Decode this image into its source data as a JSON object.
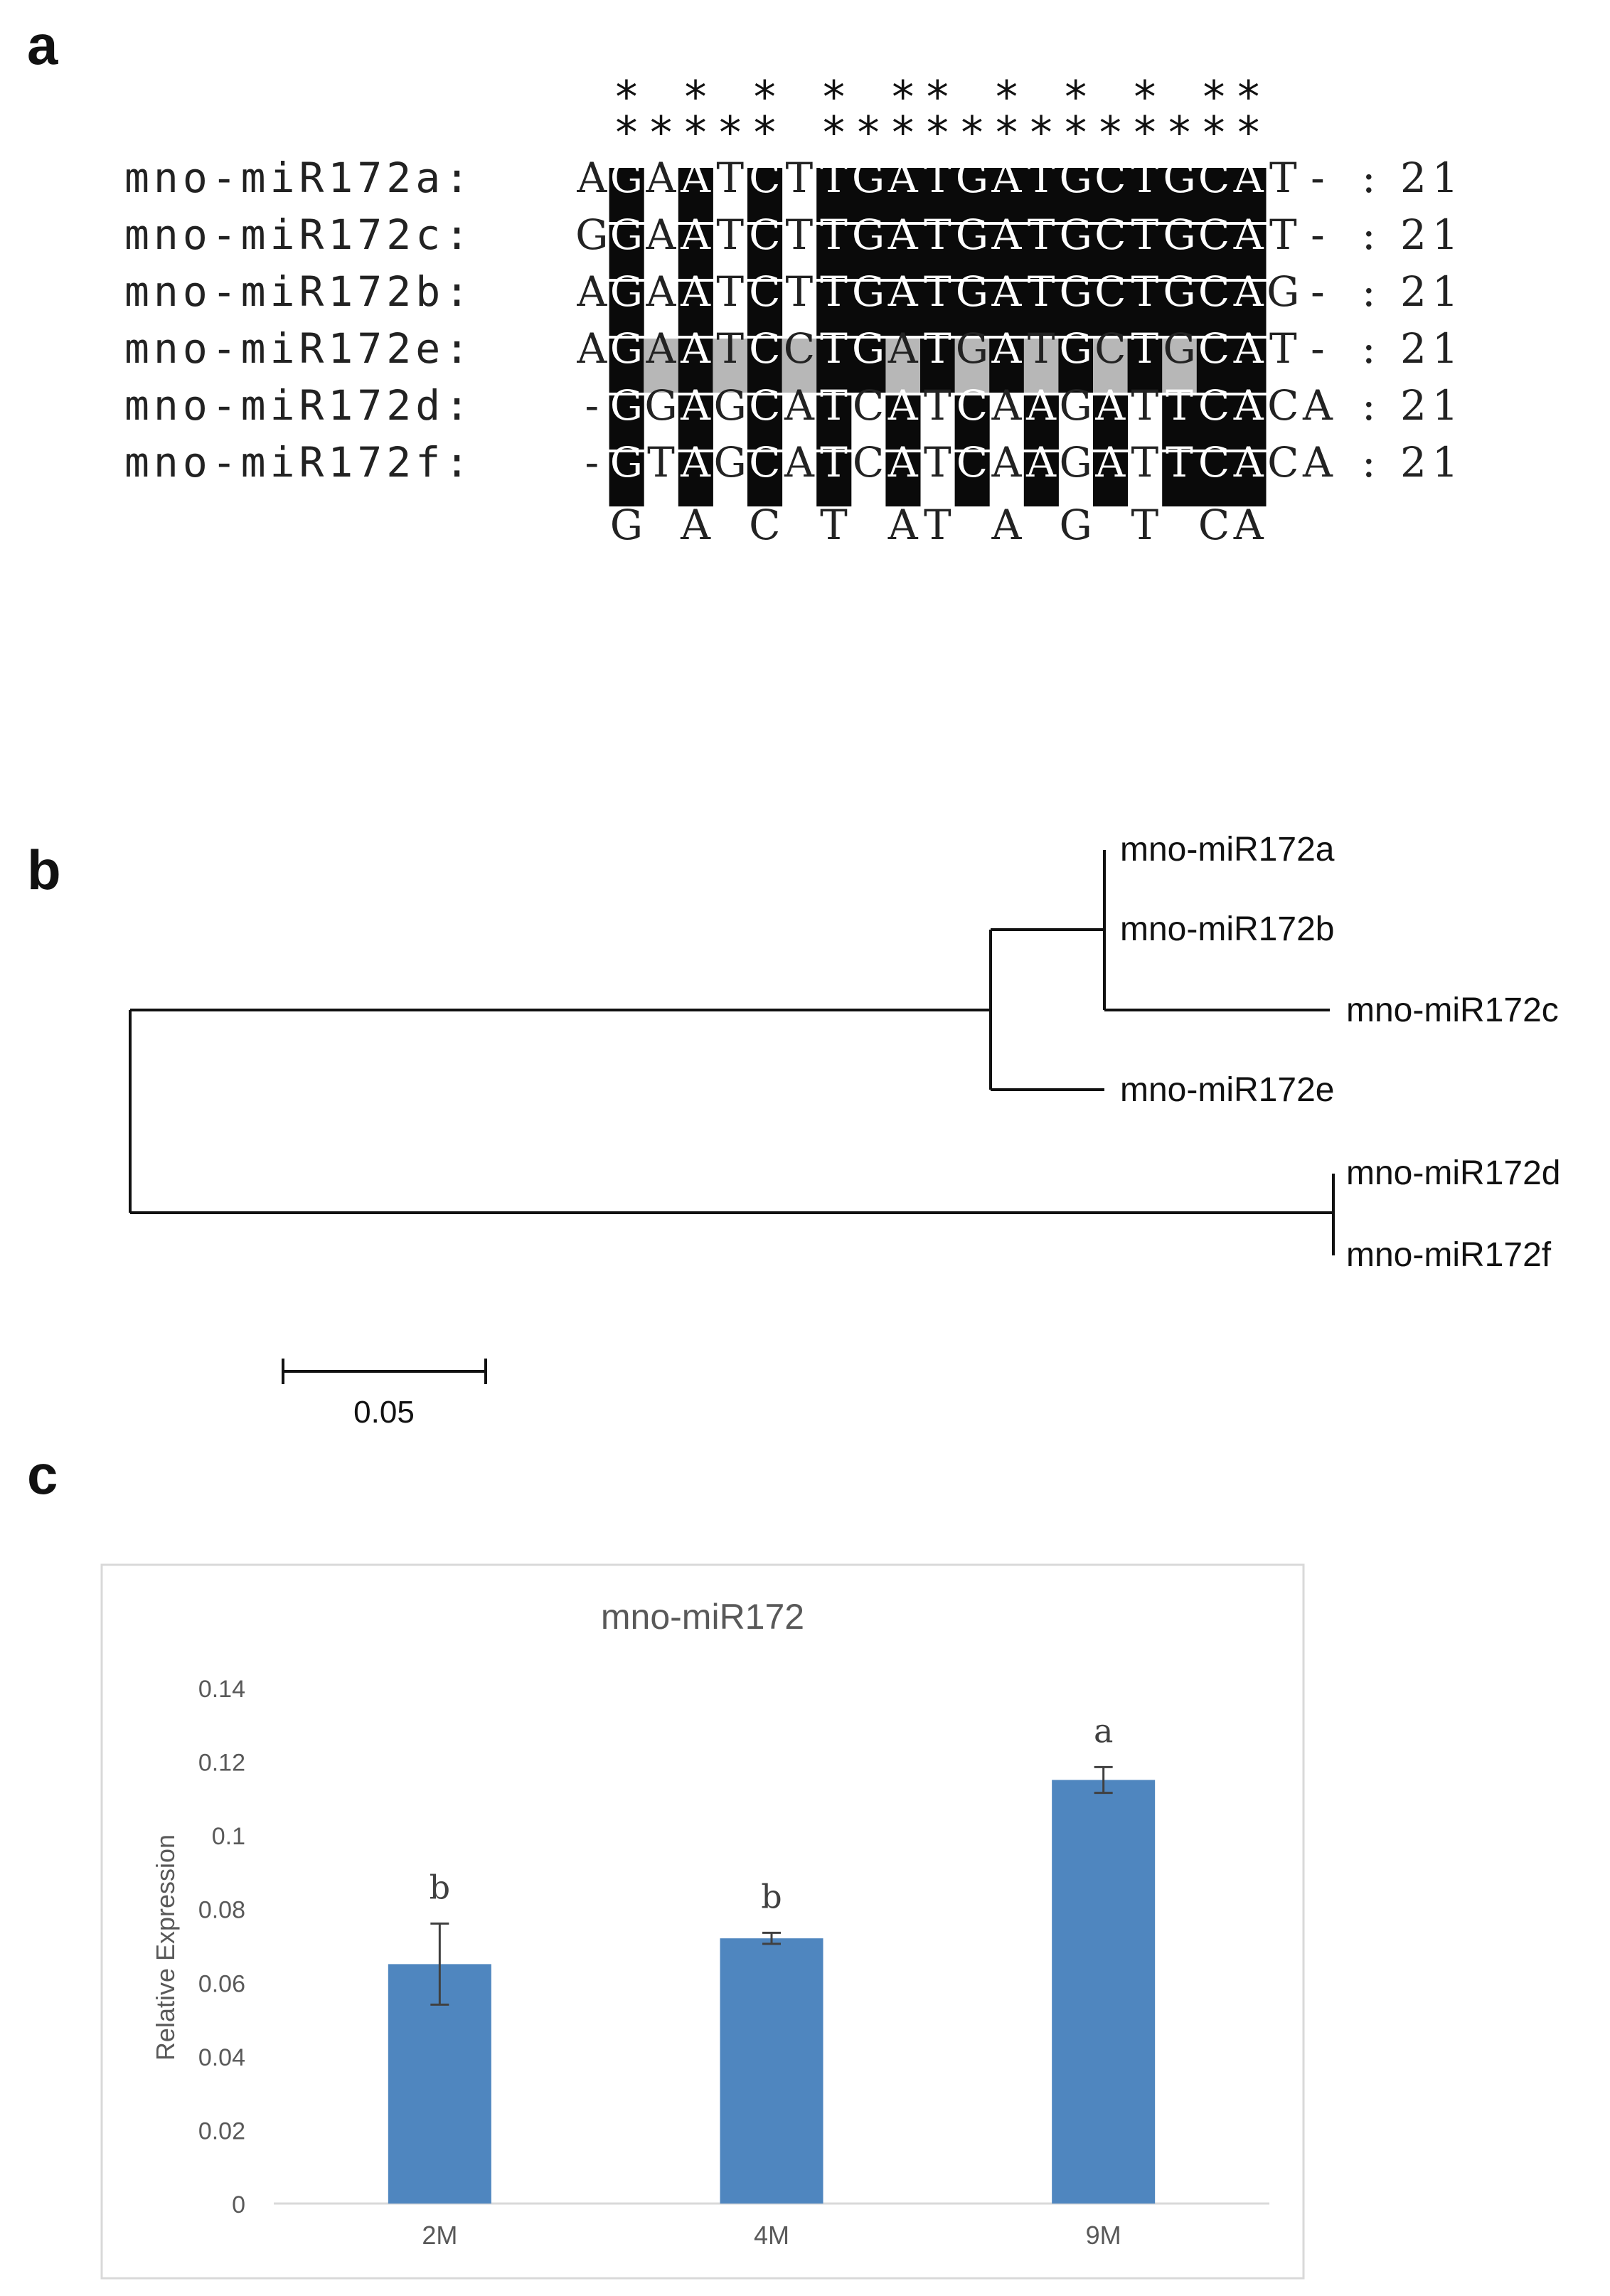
{
  "panel_a": {
    "label": "a",
    "star_row_top": "*   *   *     *   **   *   *   *   **",
    "star_row_bottom": "*****   ***************",
    "stars_top_positions": [
      1,
      3,
      5,
      7,
      9,
      10,
      12,
      14,
      16,
      18,
      19
    ],
    "stars_bottom_positions": [
      1,
      2,
      3,
      4,
      5,
      7,
      8,
      9,
      10,
      11,
      12,
      13,
      14,
      15,
      16,
      17,
      18,
      19
    ],
    "sequences": [
      {
        "name": "mno-miR172a:",
        "seq": "AGAATCTTGATGATGCTGCAT-",
        "length": "21"
      },
      {
        "name": "mno-miR172c:",
        "seq": "GGAATCTTGATGATGCTGCAT-",
        "length": "21"
      },
      {
        "name": "mno-miR172b:",
        "seq": "AGAATCTTGATGATGCTGCAG-",
        "length": "21"
      },
      {
        "name": "mno-miR172e:",
        "seq": "AGAATCCTGATGATGCTGCAT-",
        "length": "21"
      },
      {
        "name": "mno-miR172d:",
        "seq": "-GGAGCATCATCAAGATTCACA",
        "length": "21"
      },
      {
        "name": "mno-miR172f:",
        "seq": "-GTAGCATCATCAAGATTCACA",
        "length": "21"
      }
    ],
    "shading": [
      "wbwbwbwbbbbbbbbbbbbbww",
      "wbwbwbwbbbbbbbbbbbbbww",
      "wbwbwbwbbbbbbbbbbbbbww",
      "wbgbgbgbbgbgbgbgbgbbww",
      "wbwbwbwbwbwbwbwbwbbbww",
      "wbwbwbwbwbwbwbwbwbbbww"
    ],
    "consensus": " G A C T AT A G T CA "
  },
  "panel_b": {
    "label": "b",
    "leaves": [
      "mno-miR172a",
      "mno-miR172b",
      "mno-miR172c",
      "mno-miR172e",
      "mno-miR172d",
      "mno-miR172f"
    ],
    "scale_label": "0.05"
  },
  "panel_c": {
    "label": "c",
    "chart_data": {
      "type": "bar",
      "title": "mno-miR172",
      "xlabel": "",
      "ylabel": "Relative Expression",
      "categories": [
        "2M",
        "4M",
        "9M"
      ],
      "values": [
        0.065,
        0.072,
        0.115
      ],
      "errors": [
        0.011,
        0.0015,
        0.0035
      ],
      "significance_letters": [
        "b",
        "b",
        "a"
      ],
      "ylim": [
        0,
        0.14
      ],
      "yticks": [
        "0",
        "0.02",
        "0.04",
        "0.06",
        "0.08",
        "0.1",
        "0.12",
        "0.14"
      ],
      "bar_color": "#4f86bf",
      "grid": false
    }
  }
}
